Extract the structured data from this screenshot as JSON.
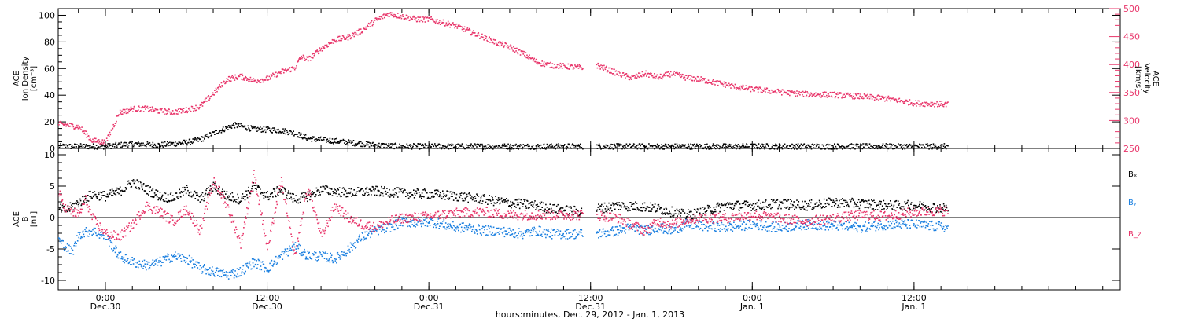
{
  "chart_data": {
    "type": "scatter",
    "xlabel": "hours:minutes, Dec. 29, 2012 - Jan. 1, 2013",
    "x_unit": "hours since Dec. 29 00:00",
    "xlim": [
      20.5,
      99.3
    ],
    "x_ticks": [
      {
        "x": 24,
        "time": "0:00",
        "day": "Dec.30"
      },
      {
        "x": 36,
        "time": "12:00",
        "day": "Dec.30"
      },
      {
        "x": 48,
        "time": "0:00",
        "day": "Dec.31"
      },
      {
        "x": 60,
        "time": "12:00",
        "day": "Dec.31"
      },
      {
        "x": 72,
        "time": "0:00",
        "day": "Jan. 1"
      },
      {
        "x": 84,
        "time": "12:00",
        "day": "Jan. 1"
      }
    ],
    "panels": [
      {
        "id": "density",
        "ylabel_lines": [
          "ACE",
          "Ion Density",
          "[cm⁻³]"
        ],
        "ylim": [
          0,
          105
        ],
        "y_ticks": [
          0,
          20,
          40,
          60,
          80,
          100
        ],
        "ylabel_right_lines": [
          "ACE",
          "Velocity",
          "[km/s]"
        ],
        "ylim_right": [
          250,
          500
        ],
        "y_ticks_right": [
          250,
          300,
          350,
          400,
          450,
          500
        ],
        "series": [
          {
            "name": "Ion Density",
            "axis": "left",
            "color": "#000000",
            "points": [
              [
                20.5,
                2
              ],
              [
                24,
                2
              ],
              [
                26,
                4
              ],
              [
                28,
                3
              ],
              [
                30,
                5
              ],
              [
                31,
                7
              ],
              [
                32,
                12
              ],
              [
                33.5,
                18
              ],
              [
                35,
                15
              ],
              [
                37,
                14
              ],
              [
                38,
                12
              ],
              [
                39,
                8
              ],
              [
                40,
                7
              ],
              [
                42,
                5
              ],
              [
                44,
                3
              ],
              [
                46,
                2
              ],
              [
                48,
                2
              ],
              [
                52,
                2
              ],
              [
                56,
                2
              ],
              [
                59.4,
                2
              ],
              [
                60.4,
                2
              ],
              [
                64,
                2
              ],
              [
                68,
                2
              ],
              [
                72,
                2
              ],
              [
                76,
                2
              ],
              [
                80,
                2
              ],
              [
                84,
                2
              ],
              [
                86.5,
                2
              ]
            ]
          },
          {
            "name": "Velocity",
            "axis": "right",
            "color": "#e8356a",
            "points": [
              [
                20.5,
                295
              ],
              [
                22,
                290
              ],
              [
                23,
                265
              ],
              [
                24,
                262
              ],
              [
                25,
                315
              ],
              [
                26,
                322
              ],
              [
                27,
                322
              ],
              [
                28,
                318
              ],
              [
                29,
                316
              ],
              [
                30,
                320
              ],
              [
                31,
                326
              ],
              [
                32,
                350
              ],
              [
                33,
                375
              ],
              [
                34,
                380
              ],
              [
                35,
                372
              ],
              [
                36,
                376
              ],
              [
                37,
                388
              ],
              [
                38,
                395
              ],
              [
                38.5,
                415
              ],
              [
                39,
                410
              ],
              [
                40,
                430
              ],
              [
                41,
                445
              ],
              [
                42,
                450
              ],
              [
                43,
                462
              ],
              [
                44,
                480
              ],
              [
                45,
                492
              ],
              [
                46,
                487
              ],
              [
                47,
                482
              ],
              [
                48,
                482
              ],
              [
                49,
                476
              ],
              [
                50,
                470
              ],
              [
                51,
                460
              ],
              [
                52,
                450
              ],
              [
                53,
                440
              ],
              [
                54,
                432
              ],
              [
                55,
                420
              ],
              [
                56,
                405
              ],
              [
                57,
                400
              ],
              [
                59.4,
                395
              ],
              [
                60.4,
                400
              ],
              [
                62,
                385
              ],
              [
                63,
                377
              ],
              [
                64,
                385
              ],
              [
                65,
                378
              ],
              [
                66,
                385
              ],
              [
                67,
                378
              ],
              [
                68,
                375
              ],
              [
                69,
                370
              ],
              [
                70,
                365
              ],
              [
                71,
                360
              ],
              [
                72,
                357
              ],
              [
                74,
                352
              ],
              [
                76,
                348
              ],
              [
                78,
                347
              ],
              [
                80,
                344
              ],
              [
                82,
                340
              ],
              [
                84,
                332
              ],
              [
                86.5,
                330
              ]
            ]
          }
        ]
      },
      {
        "id": "field",
        "ylabel_lines": [
          "ACE",
          "B",
          "[nT]"
        ],
        "ylim": [
          -11.5,
          11
        ],
        "y_ticks": [
          -10,
          -5,
          0,
          5,
          10
        ],
        "zero_line": true,
        "series": [
          {
            "name": "Bₓ",
            "label_level": 7,
            "color": "#000000",
            "points": [
              [
                20.5,
                1.5
              ],
              [
                21,
                1.2
              ],
              [
                22,
                2.5
              ],
              [
                23,
                3.8
              ],
              [
                24,
                3.5
              ],
              [
                25,
                4.2
              ],
              [
                26,
                5.8
              ],
              [
                27,
                4.6
              ],
              [
                28,
                3.5
              ],
              [
                29,
                3.2
              ],
              [
                30,
                4.5
              ],
              [
                31,
                3
              ],
              [
                32,
                5
              ],
              [
                33,
                3.5
              ],
              [
                34,
                3
              ],
              [
                35,
                5
              ],
              [
                36,
                3.5
              ],
              [
                37,
                4.5
              ],
              [
                38,
                3
              ],
              [
                39,
                3.5
              ],
              [
                40,
                4.5
              ],
              [
                42,
                4
              ],
              [
                44,
                4.3
              ],
              [
                46,
                4
              ],
              [
                48,
                3.8
              ],
              [
                50,
                3.5
              ],
              [
                52,
                3
              ],
              [
                54,
                2.4
              ],
              [
                56,
                2
              ],
              [
                57,
                1.5
              ],
              [
                59.4,
                1
              ],
              [
                60.4,
                1.5
              ],
              [
                62,
                2
              ],
              [
                64,
                1.8
              ],
              [
                65,
                1.5
              ],
              [
                66,
                1
              ],
              [
                67,
                0.5
              ],
              [
                68,
                0.8
              ],
              [
                69,
                1.5
              ],
              [
                70,
                2
              ],
              [
                72,
                2
              ],
              [
                74,
                2.3
              ],
              [
                76,
                2
              ],
              [
                78,
                2.5
              ],
              [
                80,
                2.3
              ],
              [
                82,
                2
              ],
              [
                84,
                2
              ],
              [
                86.5,
                1.5
              ]
            ]
          },
          {
            "name": "Bᵧ",
            "label_level": 2.5,
            "color": "#1a7fe0",
            "points": [
              [
                20.5,
                -3.5
              ],
              [
                21.5,
                -5.5
              ],
              [
                22,
                -2.5
              ],
              [
                23,
                -2
              ],
              [
                24,
                -3
              ],
              [
                25,
                -6
              ],
              [
                26,
                -7
              ],
              [
                27,
                -7.5
              ],
              [
                28,
                -7
              ],
              [
                29,
                -6
              ],
              [
                30,
                -6.5
              ],
              [
                31,
                -8
              ],
              [
                32,
                -8.5
              ],
              [
                33,
                -9
              ],
              [
                34,
                -8.5
              ],
              [
                35,
                -7
              ],
              [
                36,
                -8
              ],
              [
                37,
                -6
              ],
              [
                38,
                -4.5
              ],
              [
                39,
                -6
              ],
              [
                40,
                -6
              ],
              [
                41,
                -6.5
              ],
              [
                42,
                -5
              ],
              [
                43,
                -3
              ],
              [
                44,
                -2
              ],
              [
                45,
                -1.5
              ],
              [
                46,
                -0.5
              ],
              [
                47,
                -0.8
              ],
              [
                48,
                -0.5
              ],
              [
                49,
                -1
              ],
              [
                50,
                -1.5
              ],
              [
                51,
                -1.5
              ],
              [
                52,
                -2
              ],
              [
                53,
                -2
              ],
              [
                54,
                -2.3
              ],
              [
                55,
                -2.5
              ],
              [
                56,
                -2
              ],
              [
                57,
                -2.5
              ],
              [
                59.4,
                -2.5
              ],
              [
                60.4,
                -2.5
              ],
              [
                62,
                -2
              ],
              [
                63,
                -1.5
              ],
              [
                64,
                -2
              ],
              [
                65,
                -1.5
              ],
              [
                66,
                -2
              ],
              [
                67,
                -1
              ],
              [
                68,
                -1.2
              ],
              [
                70,
                -1.5
              ],
              [
                72,
                -1
              ],
              [
                74,
                -1.5
              ],
              [
                76,
                -1
              ],
              [
                78,
                -1.2
              ],
              [
                80,
                -1.5
              ],
              [
                82,
                -1
              ],
              [
                84,
                -1
              ],
              [
                86.5,
                -1.5
              ]
            ]
          },
          {
            "name": "B_z",
            "label_level": -2.5,
            "color": "#e8356a",
            "points": [
              [
                20.5,
                4
              ],
              [
                21,
                1.5
              ],
              [
                22,
                0.5
              ],
              [
                22.5,
                3
              ],
              [
                23,
                0
              ],
              [
                24,
                -2.5
              ],
              [
                25,
                -3
              ],
              [
                26,
                -1
              ],
              [
                27,
                2
              ],
              [
                28,
                1
              ],
              [
                29,
                -0.5
              ],
              [
                30,
                1.5
              ],
              [
                31,
                -2
              ],
              [
                32,
                6
              ],
              [
                33,
                2
              ],
              [
                34,
                -4
              ],
              [
                35,
                7
              ],
              [
                36,
                -5
              ],
              [
                37,
                6
              ],
              [
                38,
                -6
              ],
              [
                39,
                5
              ],
              [
                40,
                -3
              ],
              [
                41,
                2
              ],
              [
                42,
                0
              ],
              [
                43,
                -1
              ],
              [
                44,
                -1.5
              ],
              [
                45,
                -0.5
              ],
              [
                46,
                0
              ],
              [
                48,
                0.3
              ],
              [
                50,
                0.8
              ],
              [
                52,
                1
              ],
              [
                54,
                0.5
              ],
              [
                56,
                0.5
              ],
              [
                59.4,
                0.5
              ],
              [
                60.4,
                0.5
              ],
              [
                62,
                0
              ],
              [
                63,
                -1
              ],
              [
                64,
                -2
              ],
              [
                65,
                -0.5
              ],
              [
                66,
                -1
              ],
              [
                67,
                -0.3
              ],
              [
                68,
                0
              ],
              [
                70,
                0
              ],
              [
                72,
                0.5
              ],
              [
                74,
                0
              ],
              [
                76,
                -0.5
              ],
              [
                78,
                0
              ],
              [
                80,
                0.5
              ],
              [
                82,
                0.3
              ],
              [
                84,
                1
              ],
              [
                86.5,
                1.2
              ]
            ]
          }
        ]
      }
    ]
  }
}
